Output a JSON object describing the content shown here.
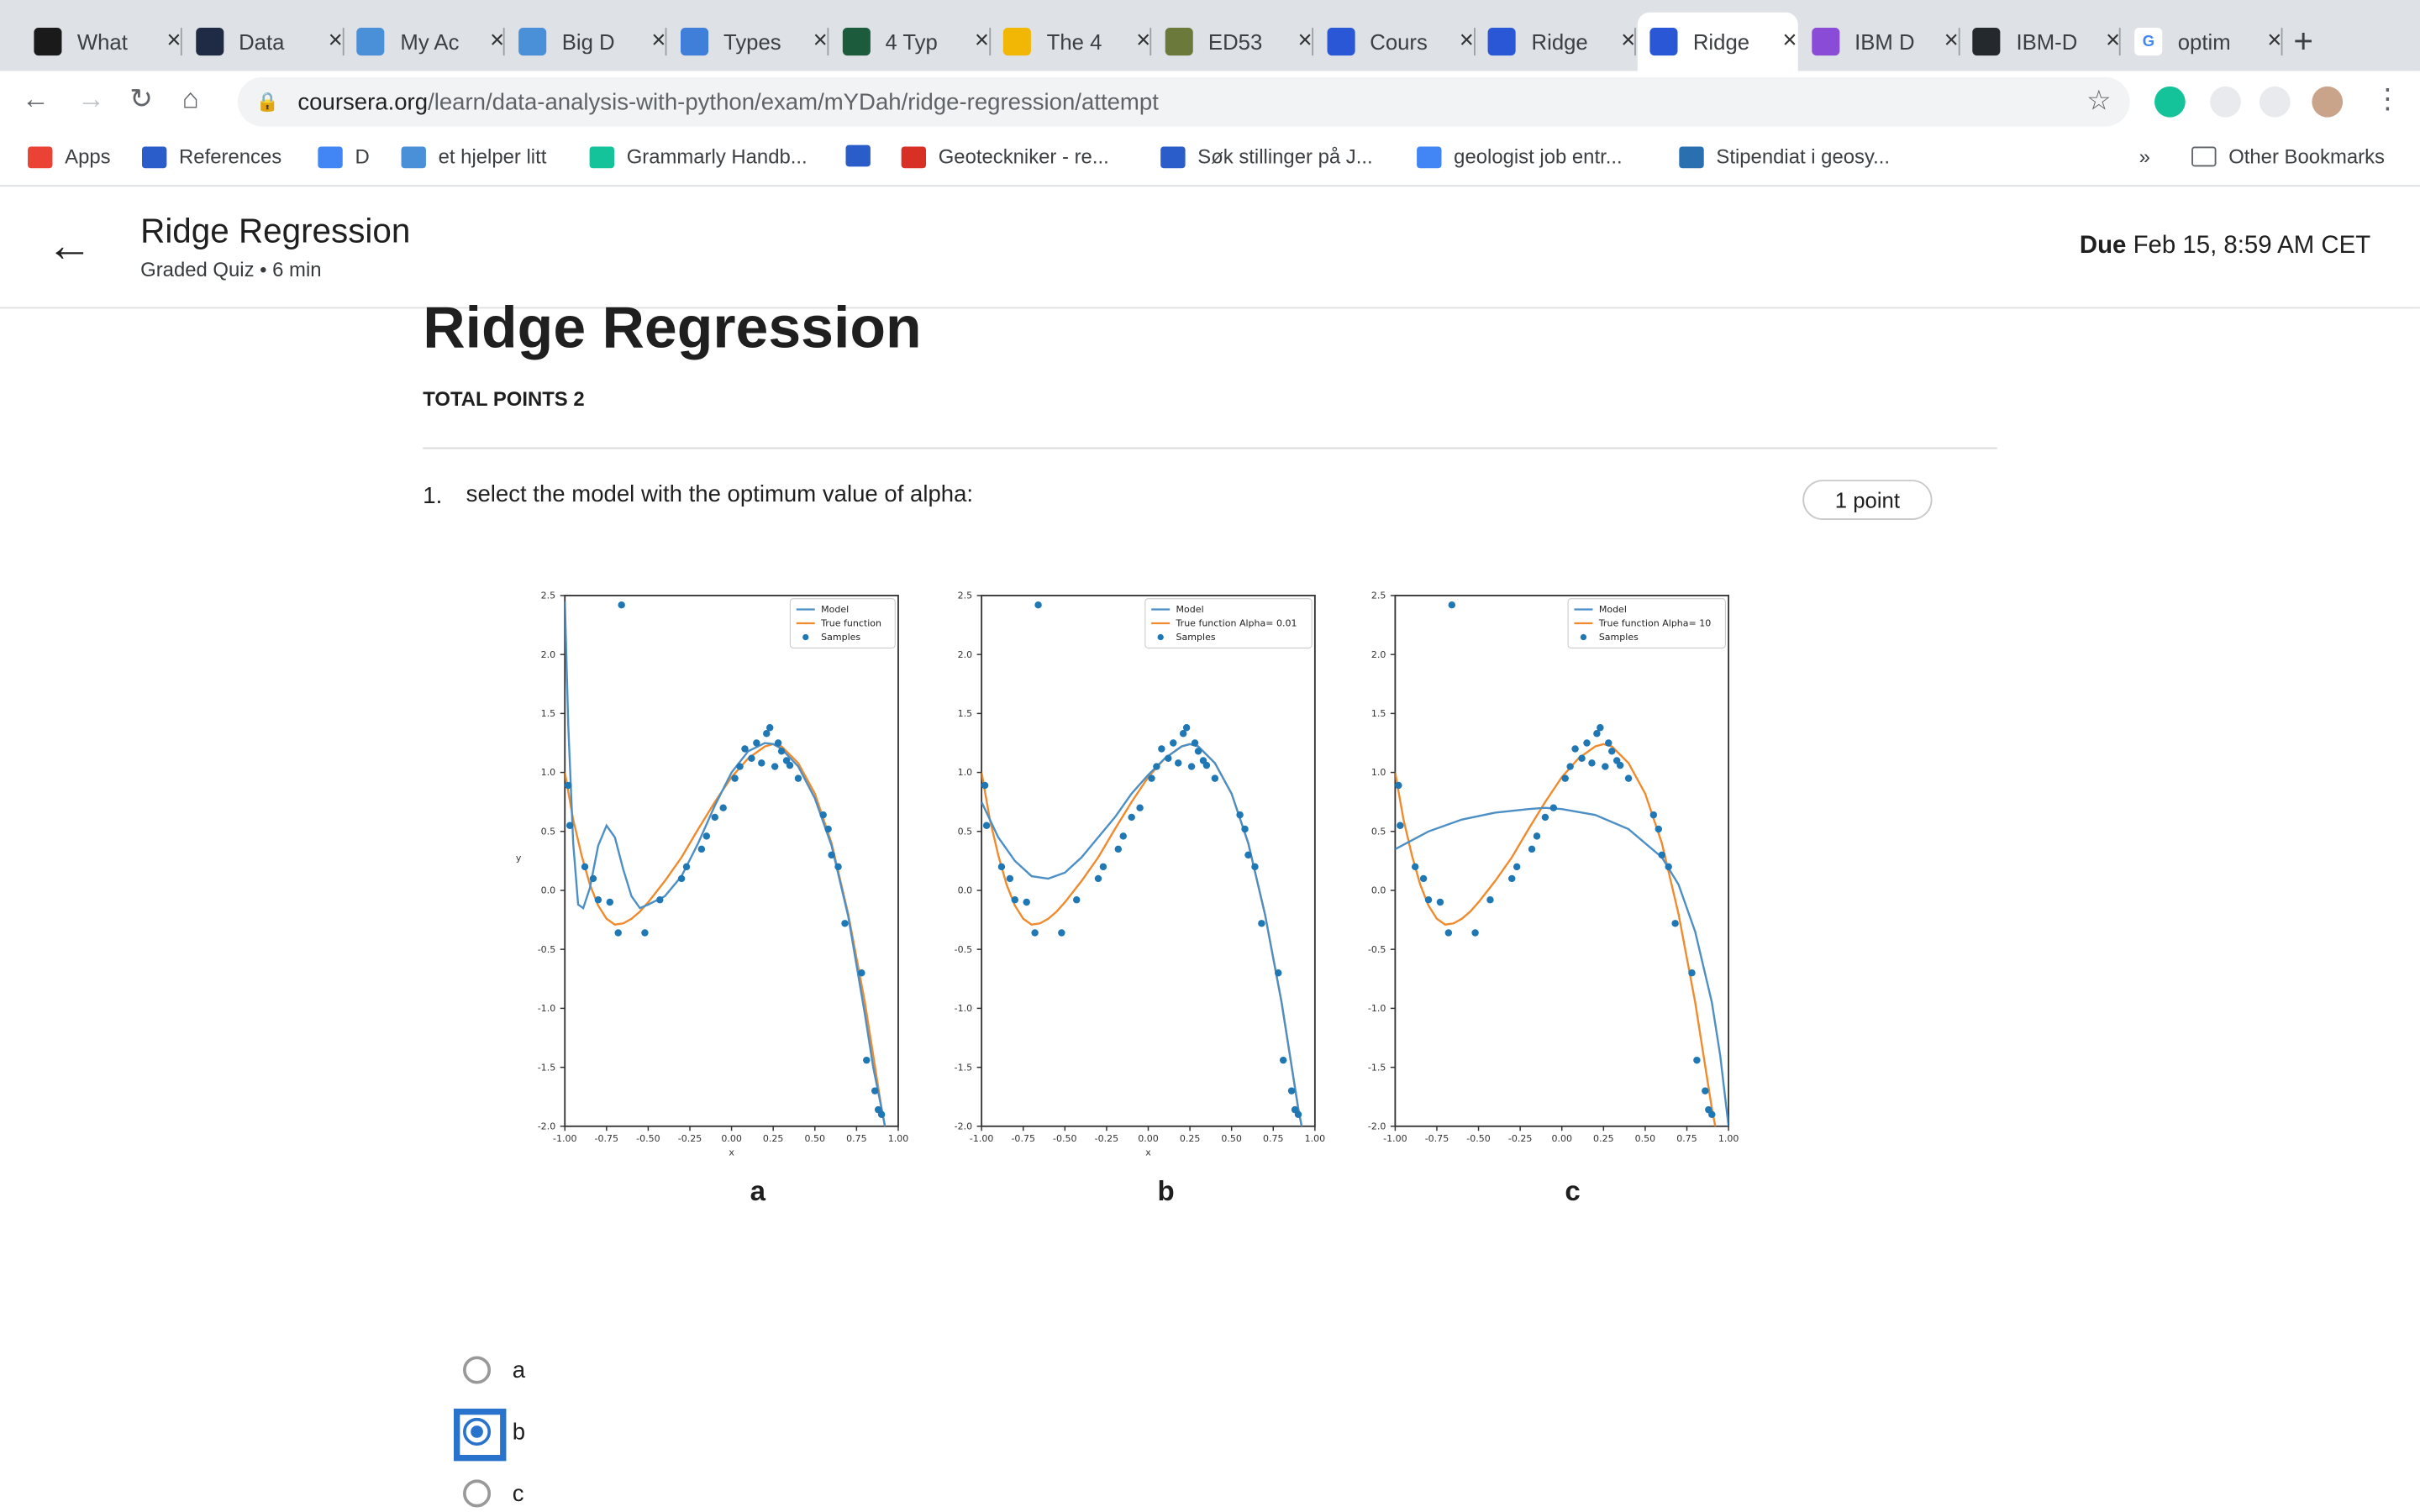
{
  "browser": {
    "tabs": [
      "What",
      "Data",
      "My Ac",
      "Big D",
      "Types",
      "4 Typ",
      "The 4",
      "ED53",
      "Cours",
      "Ridge",
      "Ridge",
      "IBM D",
      "IBM-D",
      "optim"
    ],
    "tab_close": "×",
    "new_tab": "+",
    "url_domain": "coursera.org",
    "url_path": "/learn/data-analysis-with-python/exam/mYDah/ridge-regression/attempt",
    "bookmarks": [
      "Apps",
      "References",
      "D",
      "et hjelper litt",
      "Grammarly Handb...",
      "Geoteckniker - re...",
      "Søk stillinger på J...",
      "geologist job entr...",
      "Stipendiat i geosy..."
    ],
    "bookmarks_more": "»",
    "other_bookmarks": "Other Bookmarks"
  },
  "header": {
    "title": "Ridge Regression",
    "subtitle": "Graded Quiz • 6 min",
    "due_label": "Due",
    "due_value": "Feb 15, 8:59 AM CET"
  },
  "quiz": {
    "title": "Ridge Regression",
    "total_points": "TOTAL POINTS 2",
    "question_number": "1.",
    "question_text": "select the model with the optimum  value of alpha:",
    "points_badge": "1 point",
    "panel_labels": [
      "a",
      "b",
      "c"
    ],
    "options": [
      {
        "label": "a",
        "selected": false
      },
      {
        "label": "b",
        "selected": true
      },
      {
        "label": "c",
        "selected": false
      }
    ]
  },
  "chart_data": [
    {
      "type": "scatter",
      "panel": "a",
      "xlabel": "x",
      "ylabel": "y",
      "xlim": [
        -1.0,
        1.0
      ],
      "ylim": [
        -2.0,
        2.5
      ],
      "xticks": [
        "-1.00",
        "-0.75",
        "-0.50",
        "-0.25",
        "0.00",
        "0.25",
        "0.50",
        "0.75",
        "1.00"
      ],
      "yticks": [
        "-2.0",
        "-1.5",
        "-1.0",
        "-0.5",
        "0.0",
        "0.5",
        "1.0",
        "1.5",
        "2.0",
        "2.5"
      ],
      "legend": [
        "Model",
        "True function",
        "Samples"
      ],
      "samples": {
        "x": [
          -0.98,
          -0.97,
          -0.88,
          -0.83,
          -0.8,
          -0.73,
          -0.68,
          -0.66,
          -0.52,
          -0.43,
          -0.3,
          -0.27,
          -0.18,
          -0.15,
          -0.1,
          -0.05,
          0.02,
          0.05,
          0.08,
          0.12,
          0.15,
          0.18,
          0.21,
          0.23,
          0.26,
          0.28,
          0.3,
          0.33,
          0.35,
          0.4,
          0.55,
          0.58,
          0.6,
          0.64,
          0.68,
          0.78,
          0.81,
          0.86,
          0.88,
          0.9
        ],
        "y": [
          0.89,
          0.55,
          0.2,
          0.1,
          -0.08,
          -0.1,
          -0.36,
          2.42,
          -0.36,
          -0.08,
          0.1,
          0.2,
          0.35,
          0.46,
          0.62,
          0.7,
          0.95,
          1.05,
          1.2,
          1.12,
          1.25,
          1.08,
          1.33,
          1.38,
          1.05,
          1.25,
          1.18,
          1.1,
          1.06,
          0.95,
          0.64,
          0.52,
          0.3,
          0.2,
          -0.28,
          -0.7,
          -1.44,
          -1.7,
          -1.86,
          -1.9
        ]
      },
      "series": [
        {
          "name": "Model",
          "color": "#4c8fc6",
          "x": [
            -1.0,
            -0.98,
            -0.95,
            -0.92,
            -0.89,
            -0.85,
            -0.8,
            -0.75,
            -0.7,
            -0.65,
            -0.6,
            -0.55,
            -0.5,
            -0.4,
            -0.3,
            -0.2,
            -0.1,
            0.0,
            0.1,
            0.2,
            0.25,
            0.3,
            0.4,
            0.5,
            0.6,
            0.7,
            0.8,
            0.85,
            0.9,
            0.92
          ],
          "y": [
            2.45,
            1.4,
            0.4,
            -0.12,
            -0.15,
            0.02,
            0.38,
            0.55,
            0.45,
            0.18,
            -0.05,
            -0.15,
            -0.12,
            -0.05,
            0.12,
            0.4,
            0.72,
            1.0,
            1.18,
            1.25,
            1.24,
            1.2,
            1.05,
            0.78,
            0.38,
            -0.22,
            -1.05,
            -1.5,
            -1.85,
            -2.0
          ]
        },
        {
          "name": "True function",
          "color": "#f08a2c",
          "x": [
            -1.0,
            -0.95,
            -0.9,
            -0.85,
            -0.8,
            -0.75,
            -0.7,
            -0.65,
            -0.6,
            -0.55,
            -0.5,
            -0.4,
            -0.3,
            -0.2,
            -0.1,
            0.0,
            0.1,
            0.2,
            0.25,
            0.3,
            0.4,
            0.5,
            0.6,
            0.7,
            0.8,
            0.85,
            0.9,
            0.92
          ],
          "y": [
            1.0,
            0.6,
            0.3,
            0.05,
            -0.13,
            -0.24,
            -0.29,
            -0.28,
            -0.24,
            -0.18,
            -0.1,
            0.08,
            0.28,
            0.52,
            0.75,
            0.96,
            1.12,
            1.22,
            1.24,
            1.22,
            1.08,
            0.82,
            0.4,
            -0.2,
            -0.95,
            -1.4,
            -1.85,
            -2.0
          ]
        }
      ]
    },
    {
      "type": "scatter",
      "panel": "b",
      "xlabel": "x",
      "ylabel": "",
      "xlim": [
        -1.0,
        1.0
      ],
      "ylim": [
        -2.0,
        2.5
      ],
      "xticks": [
        "-1.00",
        "-0.75",
        "-0.50",
        "-0.25",
        "0.00",
        "0.25",
        "0.50",
        "0.75",
        "1.00"
      ],
      "yticks": [
        "-2.0",
        "-1.5",
        "-1.0",
        "-0.5",
        "0.0",
        "0.5",
        "1.0",
        "1.5",
        "2.0",
        "2.5"
      ],
      "legend": [
        "Model",
        "True function Alpha= 0.01",
        "Samples"
      ],
      "series": [
        {
          "name": "Model",
          "color": "#4c8fc6",
          "x": [
            -1.0,
            -0.9,
            -0.8,
            -0.7,
            -0.6,
            -0.5,
            -0.4,
            -0.3,
            -0.2,
            -0.1,
            0.0,
            0.1,
            0.2,
            0.25,
            0.3,
            0.4,
            0.5,
            0.6,
            0.7,
            0.8,
            0.85,
            0.9,
            0.92
          ],
          "y": [
            0.75,
            0.45,
            0.25,
            0.12,
            0.1,
            0.15,
            0.28,
            0.45,
            0.62,
            0.82,
            0.98,
            1.12,
            1.22,
            1.24,
            1.22,
            1.08,
            0.82,
            0.4,
            -0.2,
            -0.95,
            -1.4,
            -1.85,
            -2.0
          ]
        },
        {
          "name": "True function Alpha= 0.01",
          "color": "#f08a2c",
          "x": [
            -1.0,
            -0.95,
            -0.9,
            -0.85,
            -0.8,
            -0.75,
            -0.7,
            -0.65,
            -0.6,
            -0.55,
            -0.5,
            -0.4,
            -0.3,
            -0.2,
            -0.1,
            0.0,
            0.1,
            0.2,
            0.25,
            0.3,
            0.4,
            0.5,
            0.6,
            0.7,
            0.8,
            0.85,
            0.9,
            0.92
          ],
          "y": [
            1.0,
            0.6,
            0.3,
            0.05,
            -0.13,
            -0.24,
            -0.29,
            -0.28,
            -0.24,
            -0.18,
            -0.1,
            0.08,
            0.28,
            0.52,
            0.75,
            0.96,
            1.12,
            1.22,
            1.24,
            1.22,
            1.08,
            0.82,
            0.4,
            -0.2,
            -0.95,
            -1.4,
            -1.85,
            -2.0
          ]
        }
      ]
    },
    {
      "type": "scatter",
      "panel": "c",
      "xlabel": "",
      "ylabel": "",
      "xlim": [
        -1.0,
        1.0
      ],
      "ylim": [
        -2.0,
        2.5
      ],
      "xticks": [
        "-1.00",
        "-0.75",
        "-0.50",
        "-0.25",
        "0.00",
        "0.25",
        "0.50",
        "0.75",
        "1.00"
      ],
      "yticks": [
        "-2.0",
        "-1.5",
        "-1.0",
        "-0.5",
        "0.0",
        "0.5",
        "1.0",
        "1.5",
        "2.0",
        "2.5"
      ],
      "legend": [
        "Model",
        "True function Alpha= 10",
        "Samples"
      ],
      "series": [
        {
          "name": "Model",
          "color": "#4c8fc6",
          "x": [
            -1.0,
            -0.8,
            -0.6,
            -0.4,
            -0.2,
            -0.1,
            0.0,
            0.2,
            0.4,
            0.6,
            0.7,
            0.8,
            0.9,
            0.95,
            1.0
          ],
          "y": [
            0.35,
            0.5,
            0.6,
            0.66,
            0.69,
            0.7,
            0.69,
            0.64,
            0.52,
            0.28,
            0.05,
            -0.35,
            -0.95,
            -1.4,
            -2.0
          ]
        },
        {
          "name": "True function Alpha= 10",
          "color": "#f08a2c",
          "x": [
            -1.0,
            -0.95,
            -0.9,
            -0.85,
            -0.8,
            -0.75,
            -0.7,
            -0.65,
            -0.6,
            -0.55,
            -0.5,
            -0.4,
            -0.3,
            -0.2,
            -0.1,
            0.0,
            0.1,
            0.2,
            0.25,
            0.3,
            0.4,
            0.5,
            0.6,
            0.7,
            0.8,
            0.85,
            0.9,
            0.92
          ],
          "y": [
            1.0,
            0.6,
            0.3,
            0.05,
            -0.13,
            -0.24,
            -0.29,
            -0.28,
            -0.24,
            -0.18,
            -0.1,
            0.08,
            0.28,
            0.52,
            0.75,
            0.96,
            1.12,
            1.22,
            1.24,
            1.22,
            1.08,
            0.82,
            0.4,
            -0.2,
            -0.95,
            -1.4,
            -1.85,
            -2.0
          ]
        }
      ]
    }
  ]
}
